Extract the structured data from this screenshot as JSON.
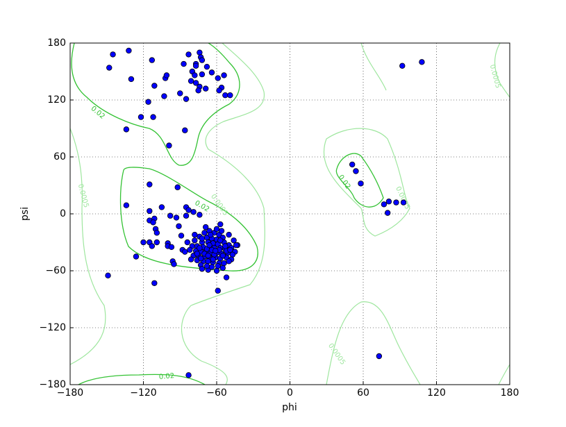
{
  "chart_data": {
    "type": "scatter",
    "x_label": "phi",
    "y_label": "psi",
    "color": "#0000ff",
    "grid": true,
    "contour_levels": [
      0.0005,
      0.02
    ],
    "xlim": [
      -180,
      180
    ],
    "ylim": [
      -180,
      180
    ],
    "xticks": [
      {
        "value": -180,
        "label": "−180"
      },
      {
        "value": -120,
        "label": "−120"
      },
      {
        "value": -60,
        "label": "−60"
      },
      0,
      60,
      120,
      180
    ],
    "yticks": [
      {
        "value": -180,
        "label": "−180"
      },
      {
        "value": -120,
        "label": "−120"
      },
      {
        "value": -60,
        "label": "−60"
      },
      0,
      60,
      120,
      180
    ],
    "x": [
      -145,
      -132,
      -148,
      -130,
      -113,
      -134,
      -122,
      -112,
      -116,
      -111,
      -102,
      -101,
      -103,
      -99,
      -83,
      -74,
      -73,
      -87,
      -77,
      -68,
      -80,
      -78,
      -72,
      -81,
      -77,
      -74,
      -69,
      -90,
      -85,
      -75,
      -64,
      -59,
      -54,
      -56,
      -58,
      -53,
      -49,
      -86,
      -77,
      -72,
      -115,
      -134,
      -92,
      -105,
      -115,
      -115,
      -111,
      -112,
      -110,
      -109,
      -120,
      -115,
      -113,
      -109,
      -126,
      -111,
      -149,
      -98,
      -93,
      -91,
      -100,
      -100,
      -97,
      -96,
      -95,
      -85,
      -83,
      -85,
      -89,
      -88,
      -79,
      -74,
      -57,
      -52,
      -59,
      -67,
      -43,
      51,
      54,
      58,
      77,
      81,
      87,
      93,
      80,
      92,
      108,
      73,
      -83,
      -70,
      -66,
      -62,
      -58,
      -74,
      -68,
      -64,
      -60,
      -55,
      -78,
      -72,
      -67,
      -63,
      -59,
      -54,
      -50,
      -80,
      -76,
      -71,
      -66,
      -62,
      -57,
      -53,
      -48,
      -45,
      -82,
      -77,
      -73,
      -69,
      -65,
      -60,
      -56,
      -51,
      -47,
      -79,
      -75,
      -70,
      -66,
      -61,
      -57,
      -52,
      -48,
      -76,
      -71,
      -67,
      -63,
      -58,
      -54,
      -73,
      -68,
      -64,
      -59,
      -55,
      -84,
      -86,
      -74,
      -68,
      -64,
      -58,
      -52,
      -70,
      -62,
      -55,
      -72,
      -65,
      -60,
      -69,
      -56,
      -50,
      -46,
      -44,
      -78,
      -81,
      -50,
      -60,
      -72,
      -66,
      -61,
      -67,
      -73,
      -57,
      -53,
      -49,
      -63,
      -76
    ],
    "values": [
      168,
      172,
      154,
      142,
      162,
      89,
      102,
      102,
      118,
      135,
      143,
      146,
      124,
      72,
      168,
      170,
      165,
      158,
      158,
      155,
      150,
      146,
      147,
      140,
      138,
      134,
      132,
      127,
      121,
      130,
      149,
      143,
      146,
      133,
      130,
      125,
      125,
      88,
      156,
      162,
      31,
      9,
      28,
      7,
      3,
      -7,
      -5,
      -9,
      -16,
      -20,
      -30,
      -30,
      -34,
      -30,
      -45,
      -73,
      -65,
      -2,
      -4,
      -13,
      -31,
      -34,
      -35,
      -50,
      -53,
      7,
      4,
      -2,
      -23,
      -38,
      2,
      -1,
      -11,
      -67,
      -81,
      -59,
      -33,
      52,
      45,
      32,
      10,
      13,
      12,
      12,
      1,
      156,
      160,
      -150,
      -170,
      -20,
      -18,
      -20,
      -22,
      -24,
      -25,
      -26,
      -27,
      -25,
      -28,
      -30,
      -30,
      -31,
      -32,
      -30,
      -33,
      -34,
      -34,
      -35,
      -35,
      -36,
      -36,
      -37,
      -36,
      -40,
      -38,
      -39,
      -40,
      -40,
      -41,
      -41,
      -42,
      -41,
      -43,
      -44,
      -44,
      -45,
      -46,
      -46,
      -47,
      -46,
      -48,
      -49,
      -50,
      -50,
      -51,
      -52,
      -52,
      -54,
      -55,
      -56,
      -55,
      -57,
      -30,
      -40,
      -36,
      -37,
      -38,
      -38,
      -39,
      -42,
      -43,
      -44,
      -26,
      -22,
      -16,
      -14,
      -18,
      -22,
      -28,
      -33,
      -22,
      -48,
      -50,
      -60,
      -58,
      -33,
      -39,
      -44,
      -47,
      -28,
      -34,
      -38,
      -48,
      -42
    ]
  }
}
